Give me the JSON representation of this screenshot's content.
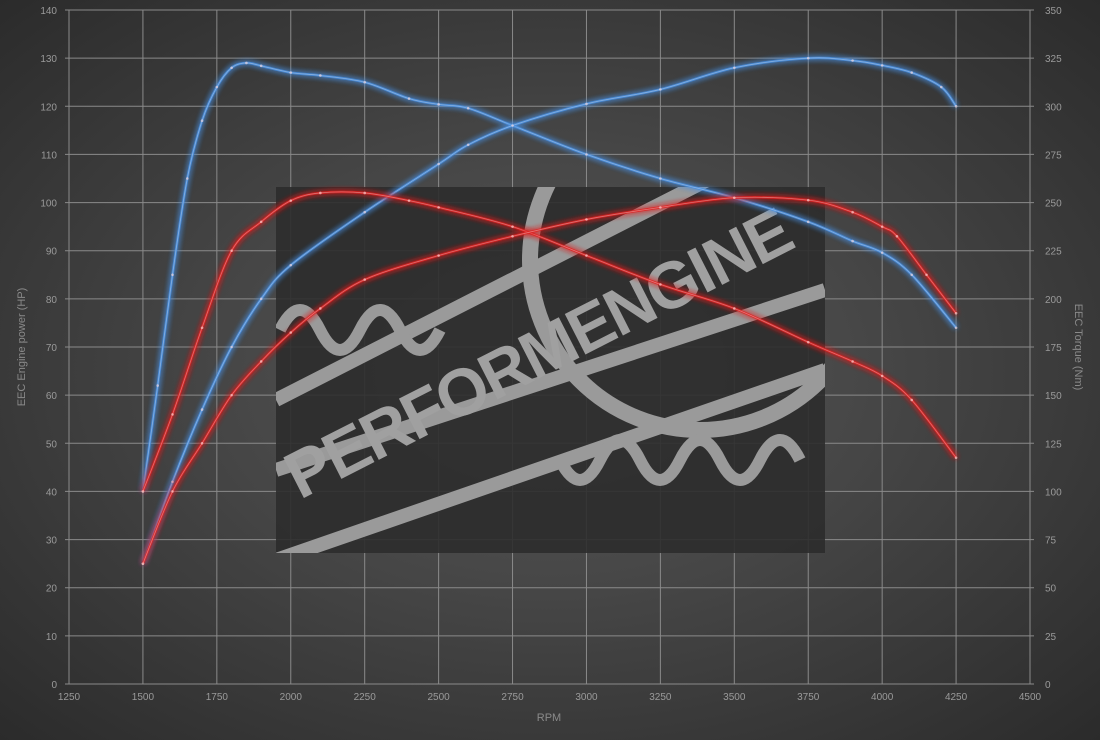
{
  "chart_data": {
    "type": "line",
    "xlabel": "RPM",
    "ylabel_left": "EEC Engine power (HP)",
    "ylabel_right": "EEC Torque (Nm)",
    "xlim": [
      1250,
      4500
    ],
    "ylim_left": [
      0,
      140
    ],
    "ylim_right": [
      0,
      350
    ],
    "x_ticks": [
      1250,
      1500,
      1750,
      2000,
      2250,
      2500,
      2750,
      3000,
      3250,
      3500,
      3750,
      4000,
      4250,
      4500
    ],
    "y_left_ticks": [
      0,
      10,
      20,
      30,
      40,
      50,
      60,
      70,
      80,
      90,
      100,
      110,
      120,
      130,
      140
    ],
    "y_right_ticks": [
      0,
      25,
      50,
      75,
      100,
      125,
      150,
      175,
      200,
      225,
      250,
      275,
      300,
      325,
      350
    ],
    "grid": true,
    "series": [
      {
        "axis": "right",
        "color": "#4a90e2",
        "x": [
          1500,
          1550,
          1600,
          1650,
          1700,
          1750,
          1800,
          1850,
          1900,
          2000,
          2100,
          2250,
          2400,
          2500,
          2600,
          2750,
          3000,
          3250,
          3500,
          3750,
          3900,
          4000,
          4100,
          4250
        ],
        "values": [
          100,
          155,
          212.5,
          262.5,
          292.5,
          310,
          320,
          322.5,
          321,
          317.5,
          316,
          312.5,
          304,
          301,
          299,
          290,
          275,
          262.5,
          252.5,
          240,
          230,
          224,
          212.5,
          185
        ]
      },
      {
        "axis": "left",
        "color": "#4a90e2",
        "x": [
          1500,
          1600,
          1700,
          1800,
          1900,
          2000,
          2250,
          2500,
          2600,
          2750,
          3000,
          3250,
          3500,
          3750,
          3900,
          4000,
          4100,
          4200,
          4250
        ],
        "values": [
          25,
          42,
          57,
          70,
          80,
          87,
          98,
          108,
          112,
          116,
          120.5,
          123.5,
          128,
          130,
          129.5,
          128.5,
          127,
          124,
          120
        ]
      },
      {
        "axis": "right",
        "color": "#e02020",
        "x": [
          1500,
          1600,
          1700,
          1800,
          1900,
          2000,
          2100,
          2250,
          2400,
          2500,
          2750,
          3000,
          3250,
          3500,
          3750,
          3900,
          4000,
          4100,
          4250
        ],
        "values": [
          100,
          140,
          185,
          225,
          240,
          251,
          255,
          255,
          251,
          247.5,
          237.5,
          222.5,
          207.5,
          195,
          177.5,
          167.5,
          160,
          147.5,
          117.5
        ]
      },
      {
        "axis": "left",
        "color": "#e02020",
        "x": [
          1500,
          1600,
          1700,
          1800,
          1900,
          2000,
          2100,
          2250,
          2500,
          2750,
          3000,
          3250,
          3500,
          3750,
          3900,
          4000,
          4050,
          4150,
          4250
        ],
        "values": [
          25,
          40,
          50,
          60,
          67,
          73,
          78,
          84,
          89,
          93,
          96.5,
          99,
          101,
          100.5,
          98,
          95,
          93,
          85,
          77
        ]
      }
    ]
  },
  "watermark": {
    "text": "PERFORMENGINE"
  }
}
